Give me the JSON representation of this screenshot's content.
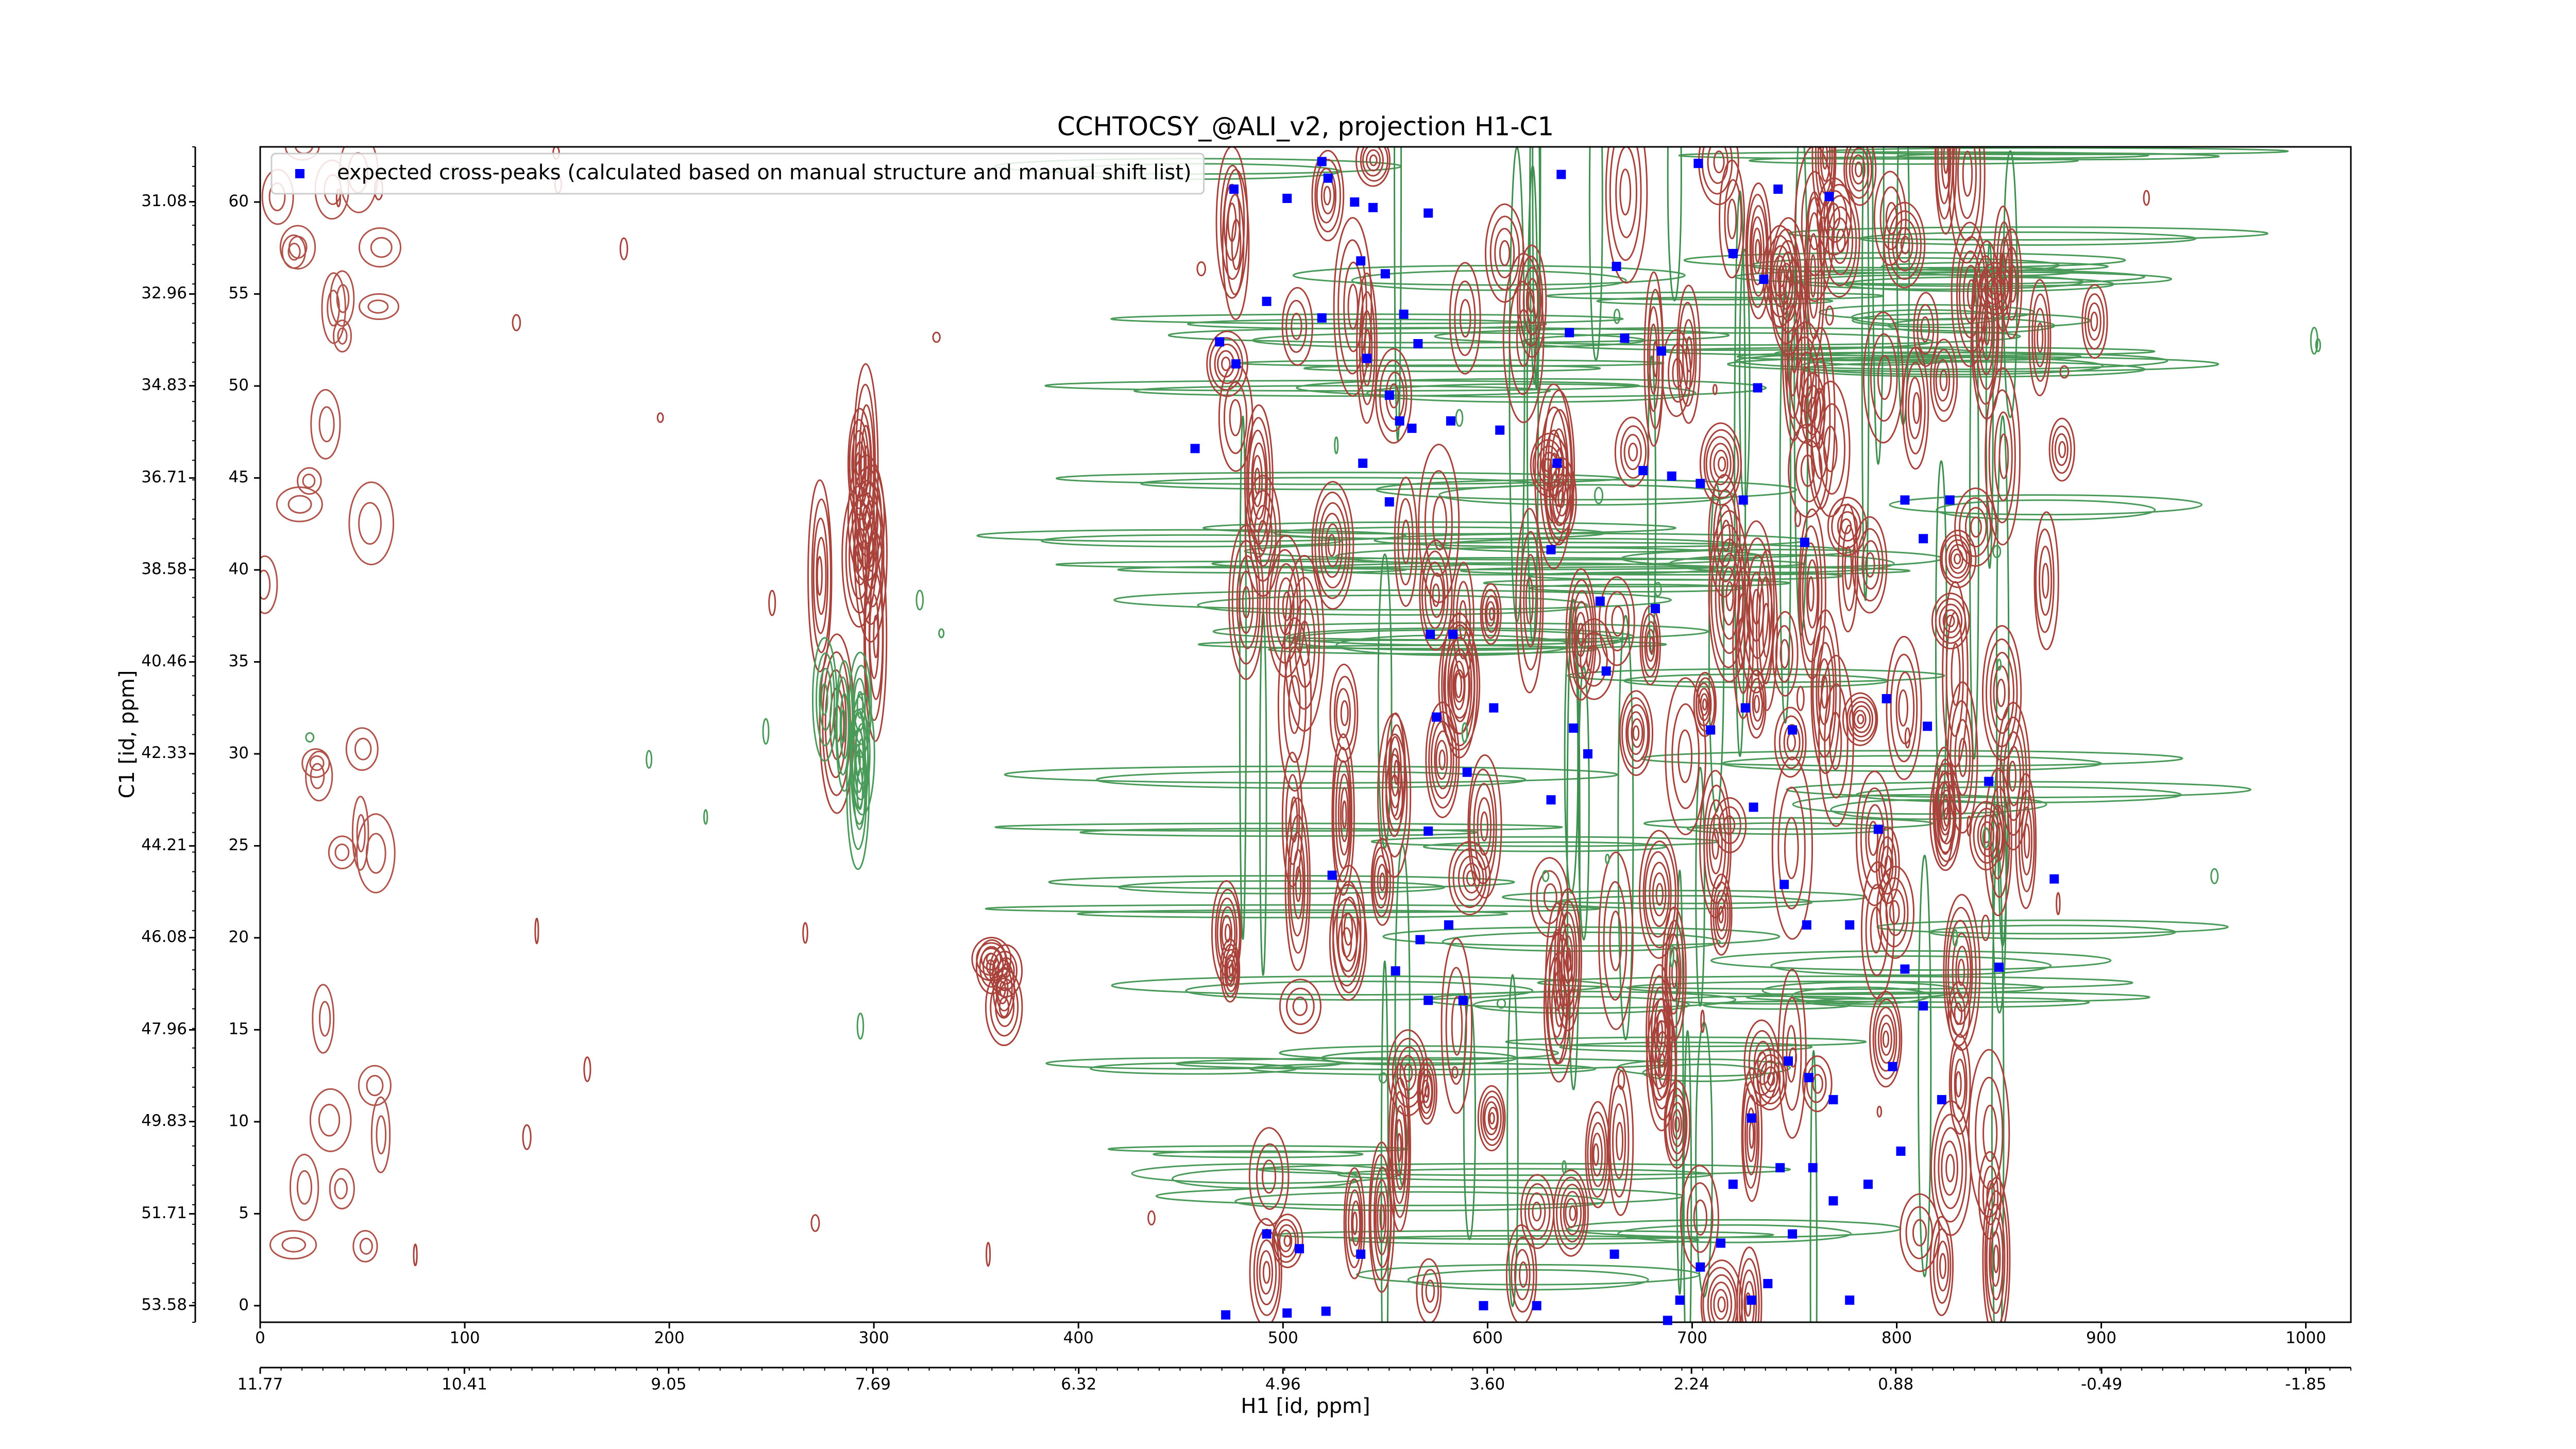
{
  "chart_data": {
    "type": "scatter",
    "title": "CCHTOCSY_@ALI_v2, projection H1-C1",
    "xlabel": "H1 [id, ppm]",
    "ylabel": "C1 [id, ppm]",
    "xlim": [
      0,
      1022
    ],
    "xticks": [
      0,
      100,
      200,
      300,
      400,
      500,
      600,
      700,
      800,
      900,
      1000
    ],
    "ylim": [
      -0.9,
      63
    ],
    "yticks": [
      0,
      5,
      10,
      15,
      20,
      25,
      30,
      35,
      40,
      45,
      50,
      55,
      60
    ],
    "x2lim": [
      11.77,
      -2.15
    ],
    "x2ticks": [
      11.77,
      10.41,
      9.05,
      7.69,
      6.32,
      4.96,
      {
        "value": 3.6,
        "label": "3.60"
      },
      2.24,
      0.88,
      -0.49,
      -1.85
    ],
    "y2lim": [
      53.92,
      29.96
    ],
    "y2ticks": [
      31.08,
      32.96,
      34.83,
      36.71,
      38.58,
      40.46,
      42.33,
      44.21,
      46.08,
      47.96,
      49.83,
      51.71,
      53.58
    ],
    "legend": "upper left",
    "series": [
      {
        "name": "expected cross-peaks (calculated based on manual structure and manual shift list)",
        "color": "#0000ff",
        "marker": "square",
        "x": [
          469,
          477,
          476,
          492,
          457,
          502,
          519,
          522,
          535,
          538,
          544,
          550,
          559,
          566,
          571,
          519,
          541,
          552,
          557,
          539,
          552,
          563,
          582,
          606,
          634,
          640,
          636,
          663,
          667,
          685,
          703,
          720,
          735,
          742,
          767,
          732,
          676,
          690,
          704,
          725,
          755,
          804,
          826,
          813,
          631,
          655,
          682,
          658,
          642,
          649,
          631,
          572,
          583,
          575,
          571,
          590,
          603,
          581,
          567,
          555,
          588,
          571,
          524,
          709,
          726,
          749,
          730,
          795,
          815,
          791,
          804,
          813,
          845,
          850,
          877,
          745,
          756,
          777,
          747,
          757,
          769,
          798,
          822,
          729,
          802,
          786,
          743,
          759,
          720,
          749,
          769,
          714,
          704,
          694,
          662,
          737,
          729,
          777,
          492,
          508,
          472,
          502,
          521,
          538,
          598,
          624,
          688
        ],
        "values": [
          52.4,
          51.2,
          60.7,
          54.6,
          46.6,
          60.2,
          62.2,
          61.3,
          60.0,
          56.8,
          59.7,
          56.1,
          53.9,
          52.3,
          59.4,
          53.7,
          51.5,
          49.5,
          48.1,
          45.8,
          43.7,
          47.7,
          48.1,
          47.6,
          45.8,
          52.9,
          61.5,
          56.5,
          52.6,
          51.9,
          62.1,
          57.2,
          55.8,
          60.7,
          60.3,
          49.9,
          45.4,
          45.1,
          44.7,
          43.8,
          41.5,
          43.8,
          43.8,
          41.7,
          41.1,
          38.3,
          37.9,
          34.5,
          31.4,
          30.0,
          27.5,
          36.5,
          36.5,
          32.0,
          25.8,
          29.0,
          32.5,
          20.7,
          19.9,
          18.2,
          16.6,
          16.6,
          23.4,
          31.3,
          32.5,
          31.3,
          27.1,
          33.0,
          31.5,
          25.9,
          18.3,
          16.3,
          28.5,
          18.4,
          23.2,
          22.9,
          20.7,
          20.7,
          13.3,
          12.4,
          11.2,
          13.0,
          11.2,
          10.2,
          8.4,
          6.6,
          7.5,
          7.5,
          6.6,
          3.9,
          5.7,
          3.4,
          2.1,
          0.3,
          2.8,
          1.2,
          0.3,
          0.3,
          3.9,
          3.1,
          -0.5,
          -0.4,
          -0.3,
          2.8,
          0,
          0,
          -0.8
        ]
      }
    ]
  }
}
